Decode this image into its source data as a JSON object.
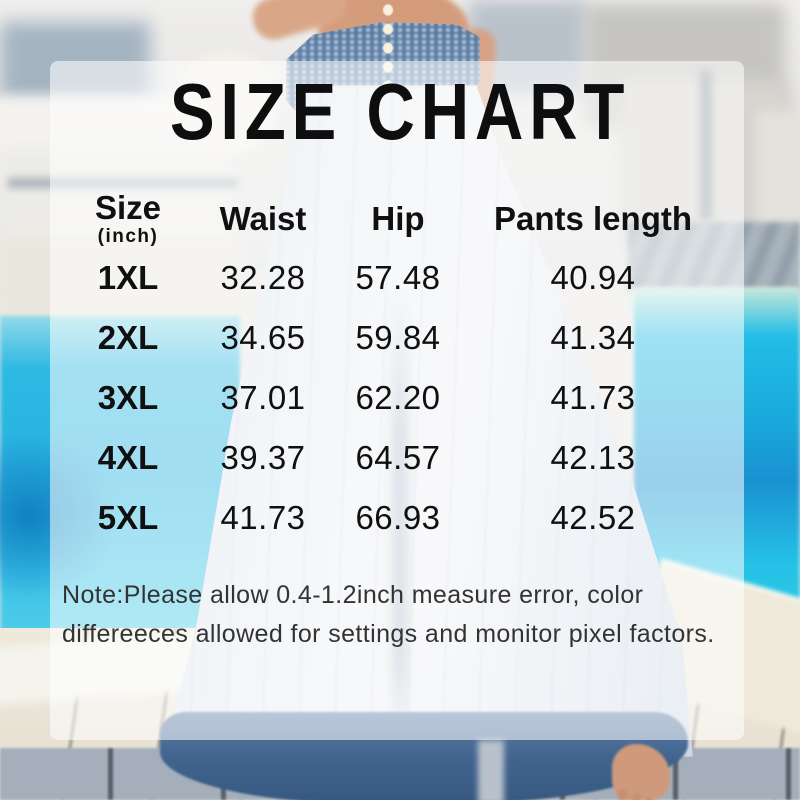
{
  "title": "SIZE CHART",
  "table": {
    "header": {
      "size_label": "Size",
      "size_unit": "(inch)",
      "waist_label": "Waist",
      "hip_label": "Hip",
      "length_label": "Pants length"
    },
    "rows": [
      {
        "size": "1XL",
        "waist": "32.28",
        "hip": "57.48",
        "length": "40.94"
      },
      {
        "size": "2XL",
        "waist": "34.65",
        "hip": "59.84",
        "length": "41.34"
      },
      {
        "size": "3XL",
        "waist": "37.01",
        "hip": "62.20",
        "length": "41.73"
      },
      {
        "size": "4XL",
        "waist": "39.37",
        "hip": "64.57",
        "length": "42.13"
      },
      {
        "size": "5XL",
        "waist": "41.73",
        "hip": "66.93",
        "length": "42.52"
      }
    ]
  },
  "note": {
    "line1": "Note:Please allow 0.4-1.2inch measure error, color",
    "line2": "differeeces allowed for settings and monitor pixel factors."
  },
  "colors": {
    "pool_water": "#29b3e1",
    "pool_deep": "#1080c2",
    "waistband_denim": "#6488ad",
    "pants_hem": "#41648f",
    "panel_overlay": "rgba(255,255,255,0.56)",
    "text": "#0e0e0e"
  },
  "chart_data": {
    "type": "table",
    "title": "SIZE CHART",
    "unit": "inch",
    "columns": [
      "Size (inch)",
      "Waist",
      "Hip",
      "Pants length"
    ],
    "rows": [
      [
        "1XL",
        32.28,
        57.48,
        40.94
      ],
      [
        "2XL",
        34.65,
        59.84,
        41.34
      ],
      [
        "3XL",
        37.01,
        62.2,
        41.73
      ],
      [
        "4XL",
        39.37,
        64.57,
        42.13
      ],
      [
        "5XL",
        41.73,
        66.93,
        42.52
      ]
    ],
    "note": "Note:Please allow 0.4-1.2inch measure error, color differeeces allowed for settings and monitor pixel factors."
  }
}
